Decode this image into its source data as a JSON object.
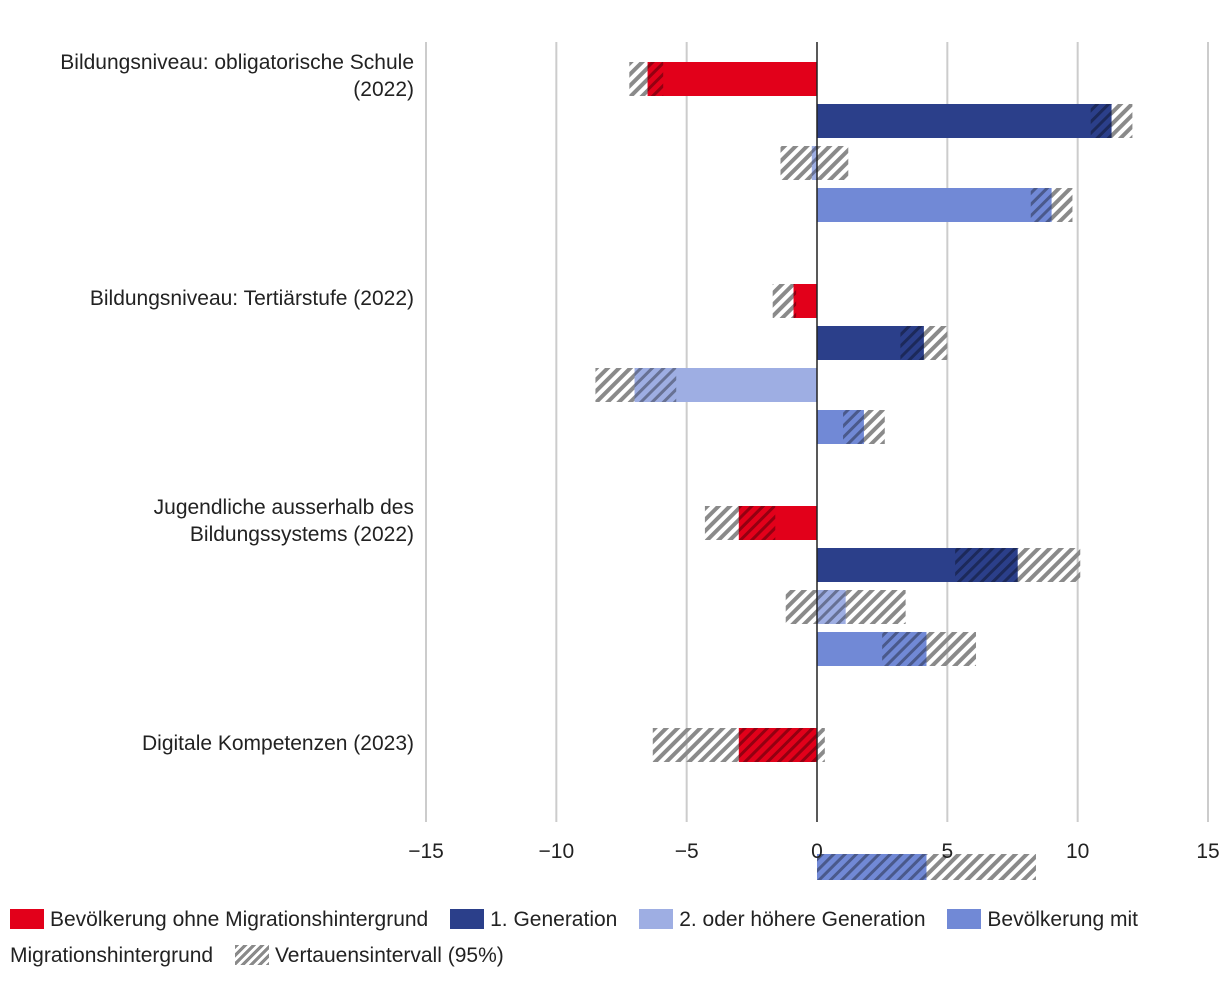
{
  "chart_data": {
    "type": "bar",
    "orientation": "horizontal",
    "categories": [
      "Bildungsniveau: obligatorische Schule (2022)",
      "Bildungsniveau: Tertiärstufe (2022)",
      "Jugendliche ausserhalb des Bildungssystems (2022)",
      "Digitale Kompetenzen (2023)"
    ],
    "category_label_lines": [
      [
        "Bildungsniveau: obligatorische Schule",
        "(2022)"
      ],
      [
        "Bildungsniveau: Tertiärstufe (2022)"
      ],
      [
        "Jugendliche ausserhalb des",
        "Bildungssystems (2022)"
      ],
      [
        "Digitale Kompetenzen (2023)"
      ]
    ],
    "series": [
      {
        "name": "Bevölkerung ohne Migrationshintergrund",
        "color": "#e2001a",
        "values": [
          -6.5,
          -0.9,
          -3.0,
          -3.0
        ],
        "ci": [
          [
            -7.2,
            -5.9
          ],
          [
            -1.7,
            -0.8
          ],
          [
            -4.3,
            -1.6
          ],
          [
            -6.3,
            0.3
          ]
        ]
      },
      {
        "name": "1. Generation",
        "color": "#2b3f8a",
        "values": [
          11.3,
          4.1,
          7.7,
          null
        ],
        "ci": [
          [
            10.5,
            12.1
          ],
          [
            3.2,
            5.0
          ],
          [
            5.3,
            10.1
          ],
          null
        ]
      },
      {
        "name": "2. oder höhere Generation",
        "color": "#9eaee3",
        "values": [
          -0.2,
          -7.0,
          1.1,
          null
        ],
        "ci": [
          [
            -1.4,
            1.2
          ],
          [
            -8.5,
            -5.4
          ],
          [
            -1.2,
            3.4
          ],
          null
        ]
      },
      {
        "name": "Bevölkerung mit Migrationshintergrund",
        "color": "#7189d6",
        "values": [
          9.0,
          1.8,
          4.2,
          4.2
        ],
        "ci": [
          [
            8.2,
            9.8
          ],
          [
            1.0,
            2.6
          ],
          [
            2.5,
            6.1
          ],
          [
            0.0,
            8.4
          ]
        ]
      }
    ],
    "xlim": [
      -15,
      15
    ],
    "xticks": [
      -15,
      -10,
      -5,
      0,
      5,
      10,
      15
    ],
    "xtick_labels": [
      "−15",
      "−10",
      "−5",
      "0",
      "5",
      "10",
      "15"
    ],
    "grid": true,
    "ci_label": "Vertauensintervall (95%)",
    "ci_color": "#8a8a8a",
    "legend_position": "bottom"
  },
  "legend": {
    "items": [
      "Bevölkerung ohne Migrationshintergrund",
      "1. Generation",
      "2. oder höhere Generation",
      "Bevölkerung mit Migrationshintergrund",
      "Vertauensintervall (95%)"
    ]
  }
}
